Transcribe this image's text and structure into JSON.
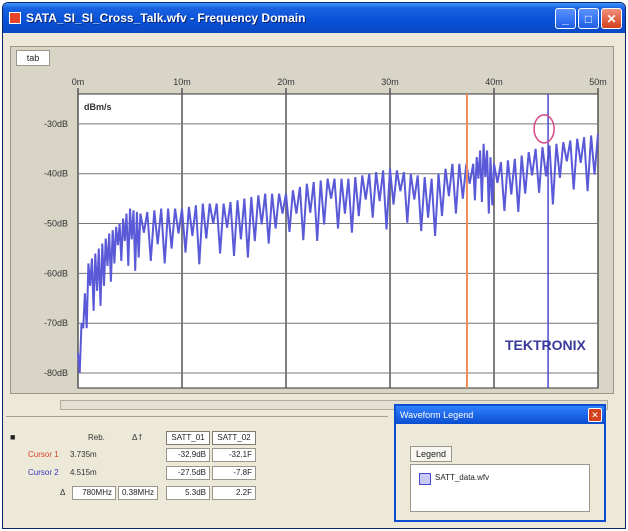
{
  "window": {
    "title": "SATA_SI_SI_Cross_Talk.wfv - Frequency Domain",
    "min_glyph": "_",
    "max_glyph": "□",
    "close_glyph": "✕"
  },
  "plot": {
    "axis_tab": "tab",
    "unit_label": "dBm/s",
    "watermark": "TEKTRONIX",
    "x_ticks": [
      "0m",
      "10m",
      "20m",
      "30m",
      "40m",
      "50m"
    ],
    "y_ticks": [
      "-30dB",
      "-40dB",
      "-50dB",
      "-60dB",
      "-70dB",
      "-80dB"
    ],
    "trace_color": "#5a5ad8",
    "cursor1_color": "#f28a5a",
    "cursor2_color": "#4a4ad0"
  },
  "chart_data": {
    "type": "line",
    "title": "",
    "xlabel": "",
    "ylabel": "dBm/s",
    "xlim": [
      0,
      50
    ],
    "ylim": [
      -83,
      -24
    ],
    "x_ticks": [
      "0m",
      "10m",
      "20m",
      "30m",
      "40m",
      "50m"
    ],
    "y_ticks": [
      "-30dB",
      "-40dB",
      "-50dB",
      "-60dB",
      "-70dB",
      "-80dB"
    ],
    "grid": true,
    "series": [
      {
        "name": "",
        "x": [
          0,
          1,
          2,
          3,
          4,
          5,
          6,
          8,
          10,
          12,
          14,
          16,
          18,
          20,
          22,
          24,
          26,
          28,
          30,
          32,
          34,
          36,
          38,
          39,
          40,
          42,
          44,
          46,
          48,
          50
        ],
        "y": [
          -76,
          -58,
          -55,
          -52,
          -50,
          -47,
          -48,
          -47,
          -47,
          -46,
          -46,
          -45,
          -44,
          -44,
          -42,
          -41,
          -41,
          -40,
          -39,
          -40,
          -41,
          -38,
          -38,
          -34,
          -38,
          -37,
          -35,
          -34,
          -33,
          -32
        ]
      }
    ],
    "cursors": [
      {
        "name": "Cursor 1",
        "x": 37.4
      },
      {
        "name": "Cursor 2",
        "x": 45.2
      }
    ]
  },
  "measurements": {
    "header_left": "Reb.",
    "header_mid": "Δ f",
    "col1": "SATT_01",
    "col2": "SATT_02",
    "rows": [
      {
        "label": "Cursor 1",
        "val": "3.735m",
        "col1": "-32.9dB",
        "col2": "-32.1F"
      },
      {
        "label": "Cursor 2",
        "val": "4.515m",
        "col1": "-27.5dB",
        "col2": "-7.8F"
      },
      {
        "label": "Δ",
        "val": "780MHz",
        "extra": "0.38MHz",
        "col1": "5.3dB",
        "col2": "2.2F"
      }
    ]
  },
  "waveform_legend": {
    "title": "Waveform Legend",
    "close": "✕",
    "tab": "Legend",
    "item_label": "SATT_data.wfv"
  }
}
